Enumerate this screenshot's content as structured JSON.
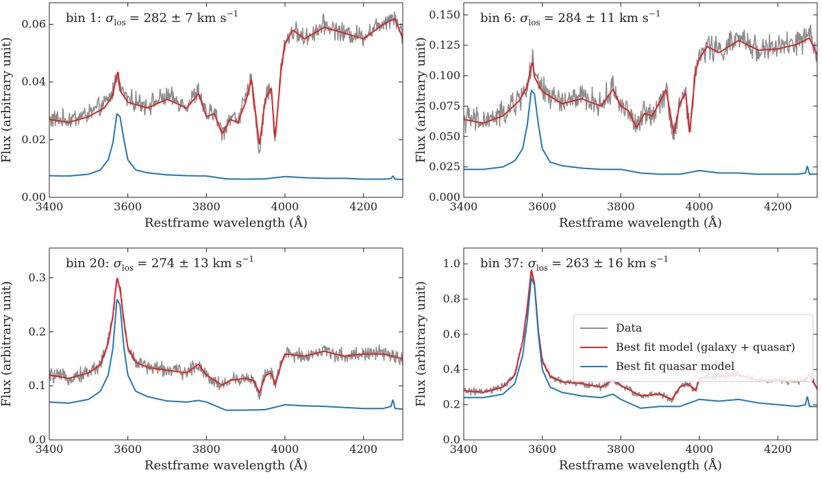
{
  "chart_data": [
    {
      "type": "line",
      "panel": "bin 1",
      "title": "bin 1: σ_los = 282 ± 7 km s⁻¹",
      "title_prefix": "bin 1:",
      "sigma_symbol": "σ",
      "sigma_subscript": "los",
      "sigma_value": "= 282 ± 7 km s",
      "sigma_exp": "−1",
      "xlabel": "Restframe wavelength (Å)",
      "ylabel": "Flux (arbitrary unit)",
      "xlim": [
        3400,
        4300
      ],
      "ylim": [
        0,
        0.0675
      ],
      "xticks": [
        3400,
        3600,
        3800,
        4000,
        4200
      ],
      "xtick_labels": [
        "3400",
        "3600",
        "3800",
        "4000",
        "4200"
      ],
      "yticks": [
        0,
        0.02,
        0.04,
        0.06
      ],
      "ytick_labels": [
        "0.00",
        "0.02",
        "0.04",
        "0.06"
      ],
      "series": [
        {
          "name": "Data",
          "color": "#8c8c8c",
          "noise": 0.0025,
          "x": [
            3400,
            3450,
            3500,
            3540,
            3560,
            3575,
            3580,
            3600,
            3650,
            3700,
            3750,
            3780,
            3800,
            3820,
            3840,
            3860,
            3880,
            3900,
            3915,
            3935,
            3950,
            3965,
            3975,
            3990,
            4000,
            4020,
            4050,
            4100,
            4150,
            4200,
            4250,
            4280,
            4300
          ],
          "y": [
            0.027,
            0.027,
            0.029,
            0.032,
            0.036,
            0.044,
            0.038,
            0.034,
            0.032,
            0.035,
            0.032,
            0.037,
            0.028,
            0.03,
            0.022,
            0.028,
            0.027,
            0.034,
            0.041,
            0.015,
            0.035,
            0.038,
            0.019,
            0.045,
            0.054,
            0.058,
            0.055,
            0.06,
            0.057,
            0.056,
            0.061,
            0.063,
            0.056
          ]
        },
        {
          "name": "Best fit model (galaxy + quasar)",
          "color": "#d62728",
          "x": [
            3400,
            3450,
            3500,
            3540,
            3560,
            3575,
            3580,
            3600,
            3650,
            3700,
            3750,
            3780,
            3800,
            3820,
            3840,
            3860,
            3880,
            3900,
            3915,
            3935,
            3950,
            3965,
            3975,
            3990,
            4000,
            4020,
            4050,
            4100,
            4150,
            4200,
            4250,
            4280,
            4300
          ],
          "y": [
            0.027,
            0.026,
            0.028,
            0.031,
            0.035,
            0.044,
            0.037,
            0.033,
            0.031,
            0.034,
            0.031,
            0.036,
            0.028,
            0.029,
            0.022,
            0.027,
            0.026,
            0.033,
            0.041,
            0.018,
            0.034,
            0.038,
            0.02,
            0.044,
            0.053,
            0.058,
            0.055,
            0.059,
            0.057,
            0.055,
            0.06,
            0.062,
            0.055
          ]
        },
        {
          "name": "Best fit quasar model",
          "color": "#1f77b4",
          "x": [
            3400,
            3450,
            3500,
            3530,
            3550,
            3562,
            3572,
            3580,
            3590,
            3600,
            3620,
            3650,
            3700,
            3750,
            3800,
            3850,
            3900,
            3950,
            4000,
            4050,
            4100,
            4150,
            4200,
            4250,
            4270,
            4275,
            4280,
            4300
          ],
          "y": [
            0.0075,
            0.0074,
            0.008,
            0.0095,
            0.013,
            0.019,
            0.029,
            0.028,
            0.02,
            0.013,
            0.0095,
            0.0085,
            0.0078,
            0.0075,
            0.0074,
            0.0064,
            0.0063,
            0.0064,
            0.0072,
            0.0068,
            0.0066,
            0.0066,
            0.0063,
            0.0063,
            0.0065,
            0.0075,
            0.0063,
            0.0062
          ]
        }
      ]
    },
    {
      "type": "line",
      "panel": "bin 6",
      "title": "bin 6: σ_los = 284 ± 11 km s⁻¹",
      "title_prefix": "bin 6:",
      "sigma_symbol": "σ",
      "sigma_subscript": "los",
      "sigma_value": "= 284 ± 11 km s",
      "sigma_exp": "−1",
      "xlabel": "Restframe wavelength (Å)",
      "ylabel": "Flux (arbitrary unit)",
      "xlim": [
        3400,
        4300
      ],
      "ylim": [
        0,
        0.16
      ],
      "xticks": [
        3400,
        3600,
        3800,
        4000,
        4200
      ],
      "xtick_labels": [
        "3400",
        "3600",
        "3800",
        "4000",
        "4200"
      ],
      "yticks": [
        0,
        0.025,
        0.05,
        0.075,
        0.1,
        0.125,
        0.15
      ],
      "ytick_labels": [
        "0.000",
        "0.025",
        "0.050",
        "0.075",
        "0.100",
        "0.125",
        "0.150"
      ],
      "series": [
        {
          "name": "Data",
          "color": "#8c8c8c",
          "noise": 0.008,
          "x": [
            3400,
            3450,
            3500,
            3540,
            3560,
            3575,
            3580,
            3600,
            3650,
            3700,
            3750,
            3780,
            3800,
            3820,
            3840,
            3860,
            3880,
            3900,
            3915,
            3935,
            3950,
            3965,
            3975,
            3990,
            4000,
            4020,
            4050,
            4100,
            4150,
            4200,
            4250,
            4280,
            4300
          ],
          "y": [
            0.065,
            0.062,
            0.068,
            0.08,
            0.09,
            0.112,
            0.1,
            0.088,
            0.078,
            0.082,
            0.076,
            0.09,
            0.076,
            0.072,
            0.056,
            0.07,
            0.068,
            0.08,
            0.09,
            0.05,
            0.078,
            0.087,
            0.05,
            0.105,
            0.115,
            0.125,
            0.12,
            0.13,
            0.122,
            0.123,
            0.127,
            0.132,
            0.118
          ]
        },
        {
          "name": "Best fit model (galaxy + quasar)",
          "color": "#d62728",
          "x": [
            3400,
            3450,
            3500,
            3540,
            3560,
            3575,
            3580,
            3600,
            3650,
            3700,
            3750,
            3780,
            3800,
            3820,
            3840,
            3860,
            3880,
            3900,
            3915,
            3935,
            3950,
            3965,
            3975,
            3990,
            4000,
            4020,
            4050,
            4100,
            4150,
            4200,
            4250,
            4280,
            4300
          ],
          "y": [
            0.064,
            0.061,
            0.067,
            0.079,
            0.09,
            0.112,
            0.099,
            0.087,
            0.077,
            0.081,
            0.075,
            0.089,
            0.075,
            0.071,
            0.057,
            0.069,
            0.067,
            0.079,
            0.089,
            0.052,
            0.077,
            0.086,
            0.052,
            0.104,
            0.114,
            0.124,
            0.119,
            0.129,
            0.121,
            0.122,
            0.126,
            0.131,
            0.117
          ]
        },
        {
          "name": "Best fit quasar model",
          "color": "#1f77b4",
          "x": [
            3400,
            3450,
            3500,
            3530,
            3550,
            3562,
            3572,
            3580,
            3590,
            3600,
            3620,
            3650,
            3700,
            3750,
            3800,
            3850,
            3900,
            3950,
            4000,
            4050,
            4100,
            4150,
            4200,
            4250,
            4270,
            4275,
            4280,
            4300
          ],
          "y": [
            0.023,
            0.023,
            0.025,
            0.03,
            0.04,
            0.06,
            0.088,
            0.085,
            0.06,
            0.04,
            0.029,
            0.026,
            0.024,
            0.023,
            0.023,
            0.02,
            0.019,
            0.019,
            0.022,
            0.02,
            0.02,
            0.019,
            0.019,
            0.019,
            0.02,
            0.026,
            0.019,
            0.019
          ]
        }
      ]
    },
    {
      "type": "line",
      "panel": "bin 20",
      "title": "bin 20: σ_los = 274 ± 13 km s⁻¹",
      "title_prefix": "bin 20:",
      "sigma_symbol": "σ",
      "sigma_subscript": "los",
      "sigma_value": "= 274 ± 13 km s",
      "sigma_exp": "−1",
      "xlabel": "Restframe wavelength (Å)",
      "ylabel": "Flux (arbitrary unit)",
      "xlim": [
        3400,
        4300
      ],
      "ylim": [
        0,
        0.355
      ],
      "xticks": [
        3400,
        3600,
        3800,
        4000,
        4200
      ],
      "xtick_labels": [
        "3400",
        "3600",
        "3800",
        "4000",
        "4200"
      ],
      "yticks": [
        0,
        0.1,
        0.2,
        0.3
      ],
      "ytick_labels": [
        "0.0",
        "0.1",
        "0.2",
        "0.3"
      ],
      "series": [
        {
          "name": "Data",
          "color": "#8c8c8c",
          "noise": 0.01,
          "x": [
            3400,
            3450,
            3500,
            3530,
            3550,
            3562,
            3572,
            3580,
            3590,
            3600,
            3620,
            3650,
            3700,
            3750,
            3780,
            3800,
            3840,
            3860,
            3900,
            3920,
            3935,
            3950,
            3965,
            3975,
            3990,
            4000,
            4050,
            4100,
            4150,
            4200,
            4250,
            4300
          ],
          "y": [
            0.12,
            0.115,
            0.125,
            0.14,
            0.18,
            0.23,
            0.3,
            0.28,
            0.22,
            0.17,
            0.145,
            0.135,
            0.13,
            0.125,
            0.14,
            0.12,
            0.1,
            0.11,
            0.115,
            0.11,
            0.085,
            0.12,
            0.125,
            0.1,
            0.14,
            0.16,
            0.155,
            0.165,
            0.155,
            0.16,
            0.16,
            0.15
          ]
        },
        {
          "name": "Best fit model (galaxy + quasar)",
          "color": "#d62728",
          "x": [
            3400,
            3450,
            3500,
            3530,
            3550,
            3562,
            3572,
            3580,
            3590,
            3600,
            3620,
            3650,
            3700,
            3750,
            3780,
            3800,
            3840,
            3860,
            3900,
            3920,
            3935,
            3950,
            3965,
            3975,
            3990,
            4000,
            4050,
            4100,
            4150,
            4200,
            4250,
            4300
          ],
          "y": [
            0.12,
            0.114,
            0.124,
            0.139,
            0.18,
            0.23,
            0.3,
            0.28,
            0.22,
            0.17,
            0.144,
            0.134,
            0.129,
            0.124,
            0.14,
            0.12,
            0.101,
            0.11,
            0.114,
            0.11,
            0.087,
            0.119,
            0.124,
            0.101,
            0.139,
            0.159,
            0.155,
            0.164,
            0.155,
            0.159,
            0.159,
            0.15
          ]
        },
        {
          "name": "Best fit quasar model",
          "color": "#1f77b4",
          "x": [
            3400,
            3450,
            3500,
            3530,
            3550,
            3562,
            3572,
            3580,
            3590,
            3600,
            3620,
            3650,
            3700,
            3750,
            3780,
            3800,
            3850,
            3900,
            3950,
            4000,
            4050,
            4100,
            4150,
            4200,
            4250,
            4270,
            4275,
            4280,
            4300
          ],
          "y": [
            0.07,
            0.068,
            0.075,
            0.09,
            0.12,
            0.17,
            0.26,
            0.25,
            0.17,
            0.12,
            0.09,
            0.08,
            0.072,
            0.07,
            0.073,
            0.07,
            0.055,
            0.055,
            0.056,
            0.065,
            0.063,
            0.062,
            0.06,
            0.058,
            0.058,
            0.062,
            0.075,
            0.058,
            0.057
          ]
        }
      ]
    },
    {
      "type": "line",
      "panel": "bin 37",
      "title": "bin 37: σ_los = 263 ± 16 km s⁻¹",
      "title_prefix": "bin 37:",
      "sigma_symbol": "σ",
      "sigma_subscript": "los",
      "sigma_value": "= 263 ± 16 km s",
      "sigma_exp": "−1",
      "xlabel": "Restframe wavelength (Å)",
      "ylabel": "Flux (arbitrary unit)",
      "xlim": [
        3400,
        4300
      ],
      "ylim": [
        0,
        1.09
      ],
      "xticks": [
        3400,
        3600,
        3800,
        4000,
        4200
      ],
      "xtick_labels": [
        "3400",
        "3600",
        "3800",
        "4000",
        "4200"
      ],
      "yticks": [
        0,
        0.2,
        0.4,
        0.6,
        0.8,
        1.0
      ],
      "ytick_labels": [
        "0.0",
        "0.2",
        "0.4",
        "0.6",
        "0.8",
        "1.0"
      ],
      "legend": {
        "placement": "right",
        "entries": [
          "Data",
          "Best fit model (galaxy + quasar)",
          "Best fit quasar model"
        ]
      },
      "series": [
        {
          "name": "Data",
          "color": "#8c8c8c",
          "noise": 0.015,
          "x": [
            3400,
            3450,
            3500,
            3530,
            3550,
            3562,
            3572,
            3580,
            3590,
            3600,
            3620,
            3650,
            3700,
            3750,
            3780,
            3800,
            3850,
            3900,
            3930,
            3950,
            3970,
            3990,
            4000,
            4050,
            4100,
            4150,
            4200,
            4250,
            4270,
            4280,
            4300
          ],
          "y": [
            0.28,
            0.27,
            0.3,
            0.37,
            0.55,
            0.75,
            0.95,
            0.88,
            0.62,
            0.45,
            0.36,
            0.33,
            0.32,
            0.3,
            0.34,
            0.31,
            0.25,
            0.26,
            0.22,
            0.3,
            0.32,
            0.28,
            0.35,
            0.36,
            0.37,
            0.34,
            0.34,
            0.33,
            0.34,
            0.38,
            0.29
          ]
        },
        {
          "name": "Best fit model (galaxy + quasar)",
          "color": "#d62728",
          "x": [
            3400,
            3450,
            3500,
            3530,
            3550,
            3562,
            3572,
            3580,
            3590,
            3600,
            3620,
            3650,
            3700,
            3750,
            3780,
            3800,
            3850,
            3900,
            3930,
            3950,
            3970,
            3990,
            4000,
            4050,
            4100,
            4150,
            4200,
            4250,
            4270,
            4280,
            4300
          ],
          "y": [
            0.28,
            0.27,
            0.3,
            0.37,
            0.56,
            0.76,
            0.97,
            0.89,
            0.62,
            0.45,
            0.36,
            0.33,
            0.32,
            0.3,
            0.34,
            0.31,
            0.25,
            0.26,
            0.23,
            0.3,
            0.32,
            0.28,
            0.35,
            0.36,
            0.37,
            0.34,
            0.34,
            0.33,
            0.34,
            0.37,
            0.29
          ]
        },
        {
          "name": "Best fit quasar model",
          "color": "#1f77b4",
          "x": [
            3400,
            3450,
            3500,
            3530,
            3550,
            3562,
            3572,
            3580,
            3590,
            3600,
            3620,
            3650,
            3700,
            3750,
            3780,
            3800,
            3850,
            3900,
            3950,
            4000,
            4050,
            4100,
            4150,
            4200,
            4250,
            4270,
            4275,
            4280,
            4300
          ],
          "y": [
            0.24,
            0.24,
            0.26,
            0.32,
            0.48,
            0.68,
            0.92,
            0.88,
            0.6,
            0.4,
            0.3,
            0.27,
            0.25,
            0.24,
            0.26,
            0.23,
            0.18,
            0.19,
            0.19,
            0.23,
            0.22,
            0.23,
            0.21,
            0.2,
            0.19,
            0.2,
            0.25,
            0.19,
            0.19
          ]
        }
      ]
    }
  ]
}
